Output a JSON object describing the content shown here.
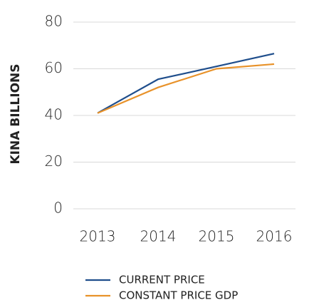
{
  "chart_data": {
    "type": "line",
    "y_label": "KINA BILLIONS",
    "categories": [
      "2013",
      "2014",
      "2015",
      "2016"
    ],
    "series": [
      {
        "name": "CURRENT PRICE",
        "color": "#1f4e8c",
        "values": [
          41,
          55.5,
          61,
          66.5
        ]
      },
      {
        "name": "CONSTANT PRICE GDP",
        "color": "#e8922a",
        "values": [
          41,
          52,
          60,
          62
        ]
      }
    ],
    "ylim": [
      0,
      80
    ],
    "yticks": [
      0,
      20,
      40,
      60,
      80
    ],
    "grid": true
  }
}
